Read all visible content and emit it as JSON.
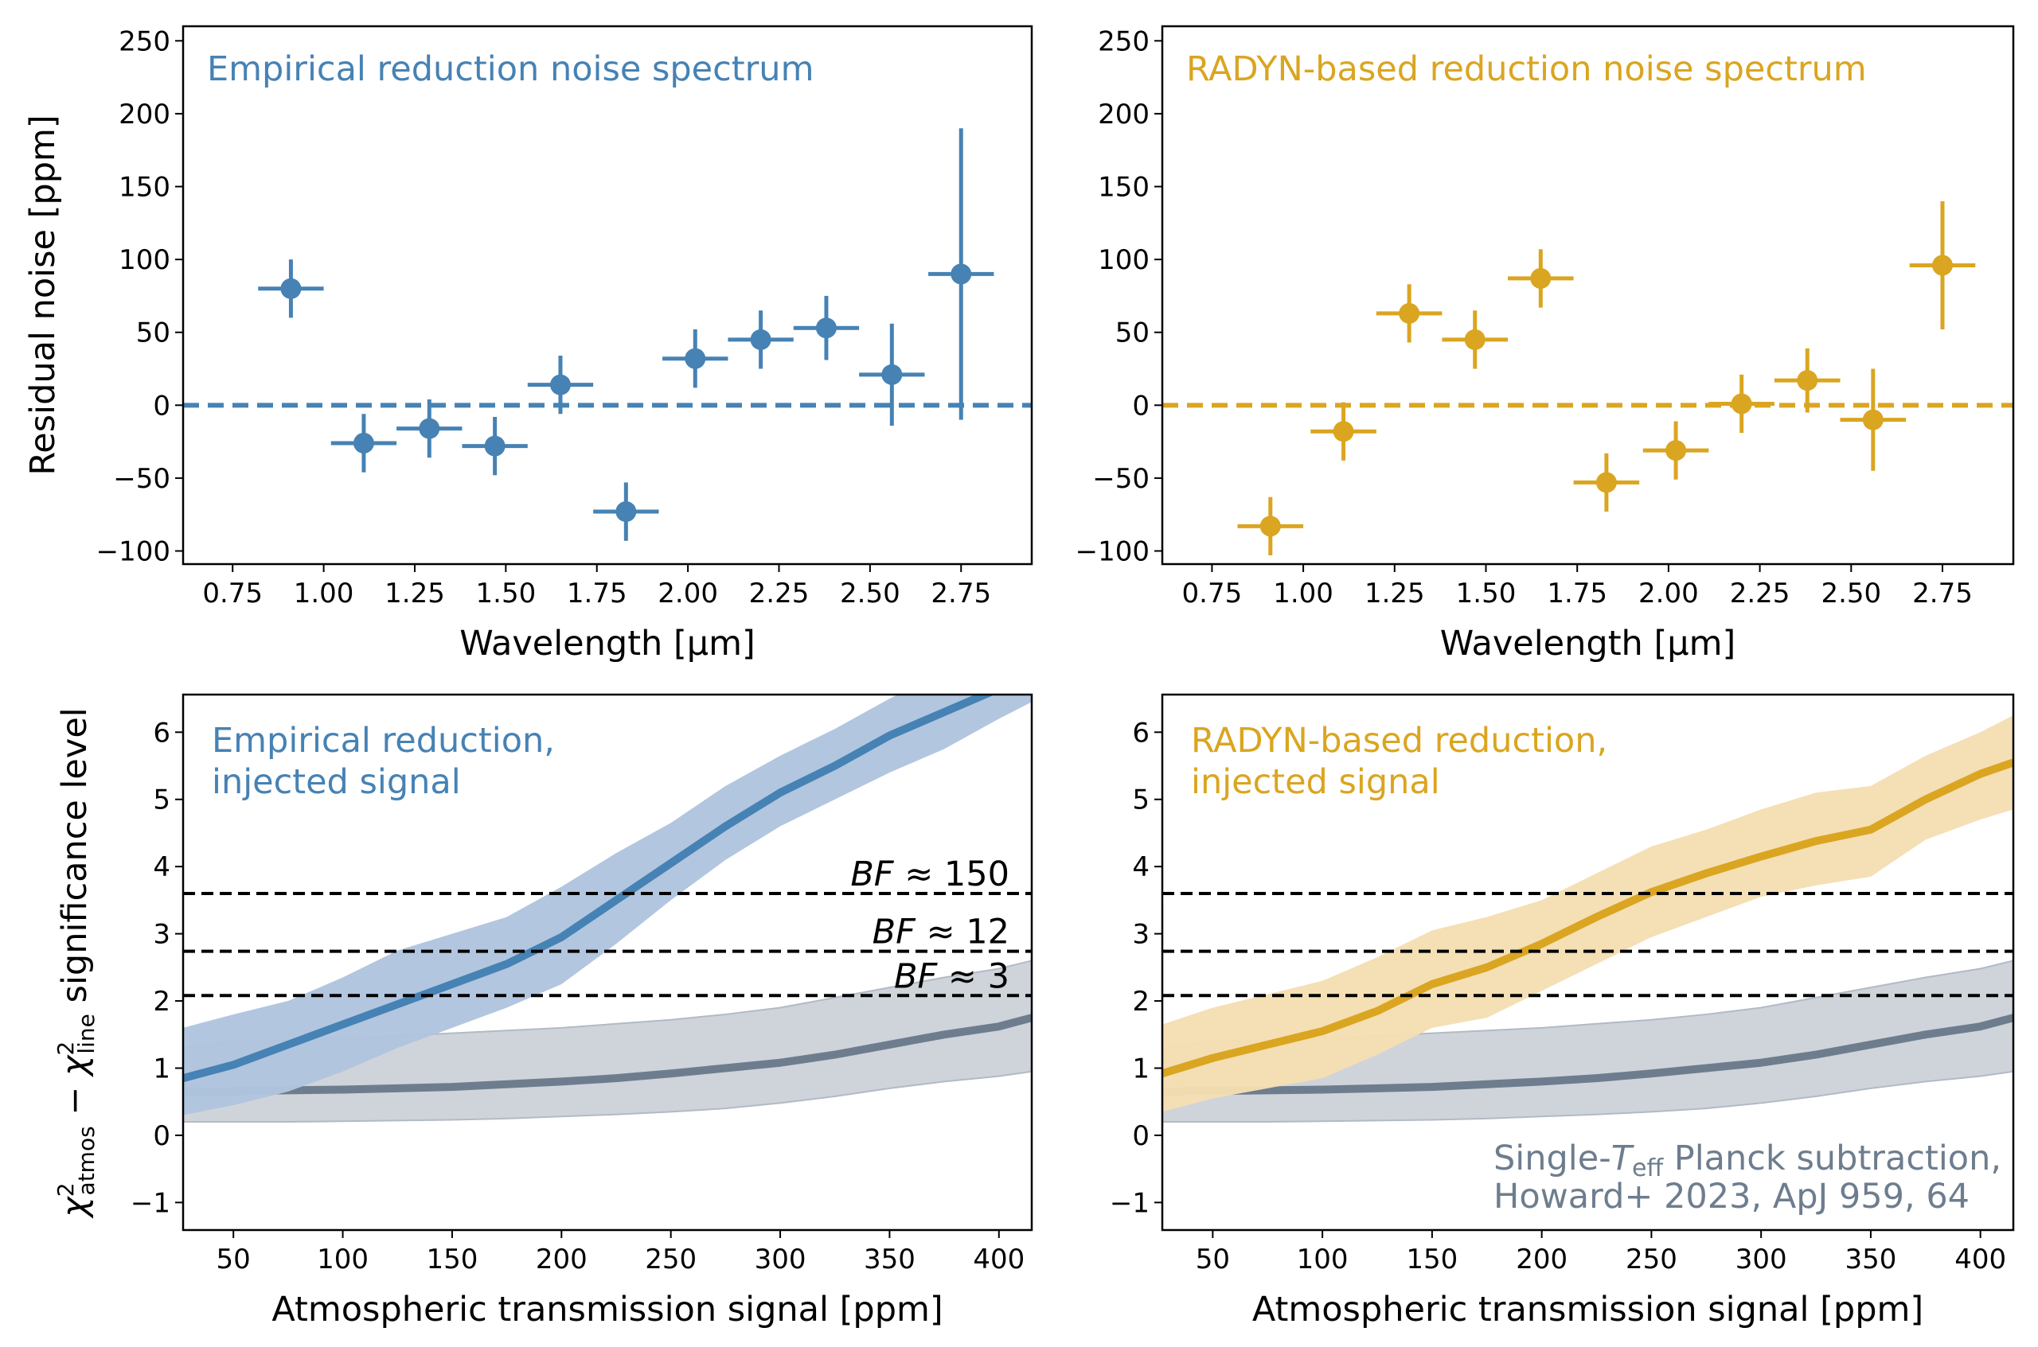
{
  "colors": {
    "empirical": "#4682b4",
    "empirical_band": "#b0c4de",
    "radyn": "#daa520",
    "radyn_band": "#f5deb3",
    "planck": "#6e7d8e",
    "planck_band": "#cdd2d9",
    "threshold": "#000000"
  },
  "chart_data": [
    {
      "type": "scatter",
      "panel": "top-left",
      "annotation": "Empirical reduction noise spectrum",
      "xlabel": "Wavelength [μm]",
      "ylabel": "Residual noise [ppm]",
      "xlim": [
        0.614,
        2.944
      ],
      "ylim": [
        -109,
        260
      ],
      "xticks": [
        0.75,
        1.0,
        1.25,
        1.5,
        1.75,
        2.0,
        2.25,
        2.5,
        2.75
      ],
      "xtick_labels": [
        "0.75",
        "1.00",
        "1.25",
        "1.50",
        "1.75",
        "2.00",
        "2.25",
        "2.50",
        "2.75"
      ],
      "yticks": [
        -100,
        -50,
        0,
        50,
        100,
        150,
        200,
        250
      ],
      "ytick_labels": [
        "−100",
        "−50",
        "0",
        "50",
        "100",
        "150",
        "200",
        "250"
      ],
      "reference_line": 0,
      "x": [
        0.91,
        1.11,
        1.29,
        1.47,
        1.65,
        1.83,
        2.02,
        2.2,
        2.38,
        2.56,
        2.75
      ],
      "y": [
        80,
        -26,
        -16,
        -28,
        14,
        -73,
        32,
        45,
        53,
        21,
        90
      ],
      "xerr": [
        0.09,
        0.09,
        0.09,
        0.09,
        0.09,
        0.09,
        0.09,
        0.09,
        0.09,
        0.09,
        0.09
      ],
      "yerr": [
        20,
        20,
        20,
        20,
        20,
        20,
        20,
        20,
        22,
        35,
        100
      ]
    },
    {
      "type": "scatter",
      "panel": "top-right",
      "annotation": "RADYN-based reduction noise spectrum",
      "xlim": [
        0.614,
        2.944
      ],
      "ylim": [
        -109,
        260
      ],
      "xticks": [
        0.75,
        1.0,
        1.25,
        1.5,
        1.75,
        2.0,
        2.25,
        2.5,
        2.75
      ],
      "xtick_labels": [
        "0.75",
        "1.00",
        "1.25",
        "1.50",
        "1.75",
        "2.00",
        "2.25",
        "2.50",
        "2.75"
      ],
      "yticks": [
        -100,
        -50,
        0,
        50,
        100,
        150,
        200,
        250
      ],
      "ytick_labels": [
        "−100",
        "−50",
        "0",
        "50",
        "100",
        "150",
        "200",
        "250"
      ],
      "xlabel": "Wavelength [μm]",
      "reference_line": 0,
      "x": [
        0.91,
        1.11,
        1.29,
        1.47,
        1.65,
        1.83,
        2.02,
        2.2,
        2.38,
        2.56,
        2.75
      ],
      "y": [
        -83,
        -18,
        63,
        45,
        87,
        -53,
        -31,
        1,
        17,
        -10,
        96
      ],
      "xerr": [
        0.09,
        0.09,
        0.09,
        0.09,
        0.09,
        0.09,
        0.09,
        0.09,
        0.09,
        0.09,
        0.09
      ],
      "yerr": [
        20,
        20,
        20,
        20,
        20,
        20,
        20,
        20,
        22,
        35,
        44
      ]
    },
    {
      "type": "area",
      "panel": "bottom-left",
      "annotation_lines": [
        "Empirical reduction,",
        "injected signal"
      ],
      "xlabel": "Atmospheric transmission signal [ppm]",
      "ylabel": {
        "sym": "χ",
        "sup": "2",
        "sub1": "atmos",
        "minus": " − ",
        "sub2": "line",
        "rest": " significance level"
      },
      "xlim": [
        27,
        415
      ],
      "ylim": [
        -1.41,
        6.56
      ],
      "xticks": [
        50,
        100,
        150,
        200,
        250,
        300,
        350,
        400
      ],
      "xtick_labels": [
        "50",
        "100",
        "150",
        "200",
        "250",
        "300",
        "350",
        "400"
      ],
      "yticks": [
        -1,
        0,
        1,
        2,
        3,
        4,
        5,
        6
      ],
      "ytick_labels": [
        "−1",
        "0",
        "1",
        "2",
        "3",
        "4",
        "5",
        "6"
      ],
      "thresholds": [
        {
          "y": 3.6,
          "label_var": "BF",
          "label_rest": " ≈ 150"
        },
        {
          "y": 2.74,
          "label_var": "BF",
          "label_rest": " ≈ 12"
        },
        {
          "y": 2.08,
          "label_var": "BF",
          "label_rest": " ≈ 3"
        }
      ],
      "x": [
        27,
        50,
        75,
        100,
        125,
        150,
        175,
        200,
        225,
        250,
        275,
        300,
        325,
        350,
        375,
        400,
        415
      ],
      "series": [
        {
          "role": "planck",
          "median": [
            0.65,
            0.66,
            0.67,
            0.68,
            0.7,
            0.72,
            0.76,
            0.8,
            0.85,
            0.92,
            1.0,
            1.08,
            1.2,
            1.35,
            1.5,
            1.62,
            1.75
          ],
          "lower": [
            0.2,
            0.2,
            0.2,
            0.21,
            0.22,
            0.23,
            0.25,
            0.28,
            0.31,
            0.35,
            0.4,
            0.48,
            0.58,
            0.7,
            0.8,
            0.88,
            0.95
          ],
          "upper": [
            1.3,
            1.4,
            1.42,
            1.45,
            1.48,
            1.52,
            1.56,
            1.6,
            1.66,
            1.72,
            1.8,
            1.9,
            2.05,
            2.2,
            2.35,
            2.48,
            2.6
          ]
        },
        {
          "role": "empirical",
          "median": [
            0.85,
            1.05,
            1.35,
            1.65,
            1.95,
            2.25,
            2.55,
            2.95,
            3.5,
            4.05,
            4.6,
            5.1,
            5.5,
            5.95,
            6.3,
            6.65,
            6.85
          ],
          "lower": [
            0.3,
            0.45,
            0.65,
            0.95,
            1.3,
            1.6,
            1.9,
            2.25,
            2.85,
            3.5,
            4.1,
            4.6,
            5.0,
            5.4,
            5.75,
            6.2,
            6.45
          ],
          "upper": [
            1.6,
            1.8,
            2.0,
            2.35,
            2.75,
            3.0,
            3.25,
            3.7,
            4.2,
            4.65,
            5.2,
            5.65,
            6.05,
            6.5,
            6.9,
            7.2,
            7.3
          ]
        }
      ]
    },
    {
      "type": "area",
      "panel": "bottom-right",
      "annotation_lines": [
        "RADYN-based reduction,",
        "injected signal"
      ],
      "planck_annotation": {
        "pre": "Single-",
        "var": "T",
        "sub": "eff",
        "post": " Planck subtraction,",
        "line2": "Howard+ 2023, ApJ 959, 64"
      },
      "xlabel": "Atmospheric transmission signal [ppm]",
      "xlim": [
        27,
        415
      ],
      "ylim": [
        -1.41,
        6.56
      ],
      "xticks": [
        50,
        100,
        150,
        200,
        250,
        300,
        350,
        400
      ],
      "xtick_labels": [
        "50",
        "100",
        "150",
        "200",
        "250",
        "300",
        "350",
        "400"
      ],
      "yticks": [
        -1,
        0,
        1,
        2,
        3,
        4,
        5,
        6
      ],
      "ytick_labels": [
        "−1",
        "0",
        "1",
        "2",
        "3",
        "4",
        "5",
        "6"
      ],
      "thresholds": [
        {
          "y": 3.6
        },
        {
          "y": 2.74
        },
        {
          "y": 2.08
        }
      ],
      "x": [
        27,
        50,
        75,
        100,
        125,
        150,
        175,
        200,
        225,
        250,
        275,
        300,
        325,
        350,
        375,
        400,
        415
      ],
      "series": [
        {
          "role": "planck",
          "median": [
            0.65,
            0.66,
            0.67,
            0.68,
            0.7,
            0.72,
            0.76,
            0.8,
            0.85,
            0.92,
            1.0,
            1.08,
            1.2,
            1.35,
            1.5,
            1.62,
            1.75
          ],
          "lower": [
            0.2,
            0.2,
            0.2,
            0.21,
            0.22,
            0.23,
            0.25,
            0.28,
            0.31,
            0.35,
            0.4,
            0.48,
            0.58,
            0.7,
            0.8,
            0.88,
            0.95
          ],
          "upper": [
            1.3,
            1.4,
            1.42,
            1.45,
            1.48,
            1.52,
            1.56,
            1.6,
            1.66,
            1.72,
            1.8,
            1.9,
            2.05,
            2.2,
            2.35,
            2.48,
            2.6
          ]
        },
        {
          "role": "radyn",
          "median": [
            0.92,
            1.15,
            1.35,
            1.55,
            1.85,
            2.25,
            2.5,
            2.85,
            3.25,
            3.62,
            3.9,
            4.15,
            4.38,
            4.55,
            5.0,
            5.38,
            5.55
          ],
          "lower": [
            0.35,
            0.55,
            0.7,
            0.85,
            1.2,
            1.6,
            1.75,
            2.15,
            2.55,
            2.95,
            3.25,
            3.55,
            3.72,
            3.85,
            4.4,
            4.7,
            4.85
          ],
          "upper": [
            1.65,
            1.9,
            2.1,
            2.3,
            2.65,
            3.05,
            3.25,
            3.5,
            3.9,
            4.3,
            4.55,
            4.85,
            5.1,
            5.2,
            5.65,
            6.0,
            6.25
          ]
        }
      ]
    }
  ]
}
